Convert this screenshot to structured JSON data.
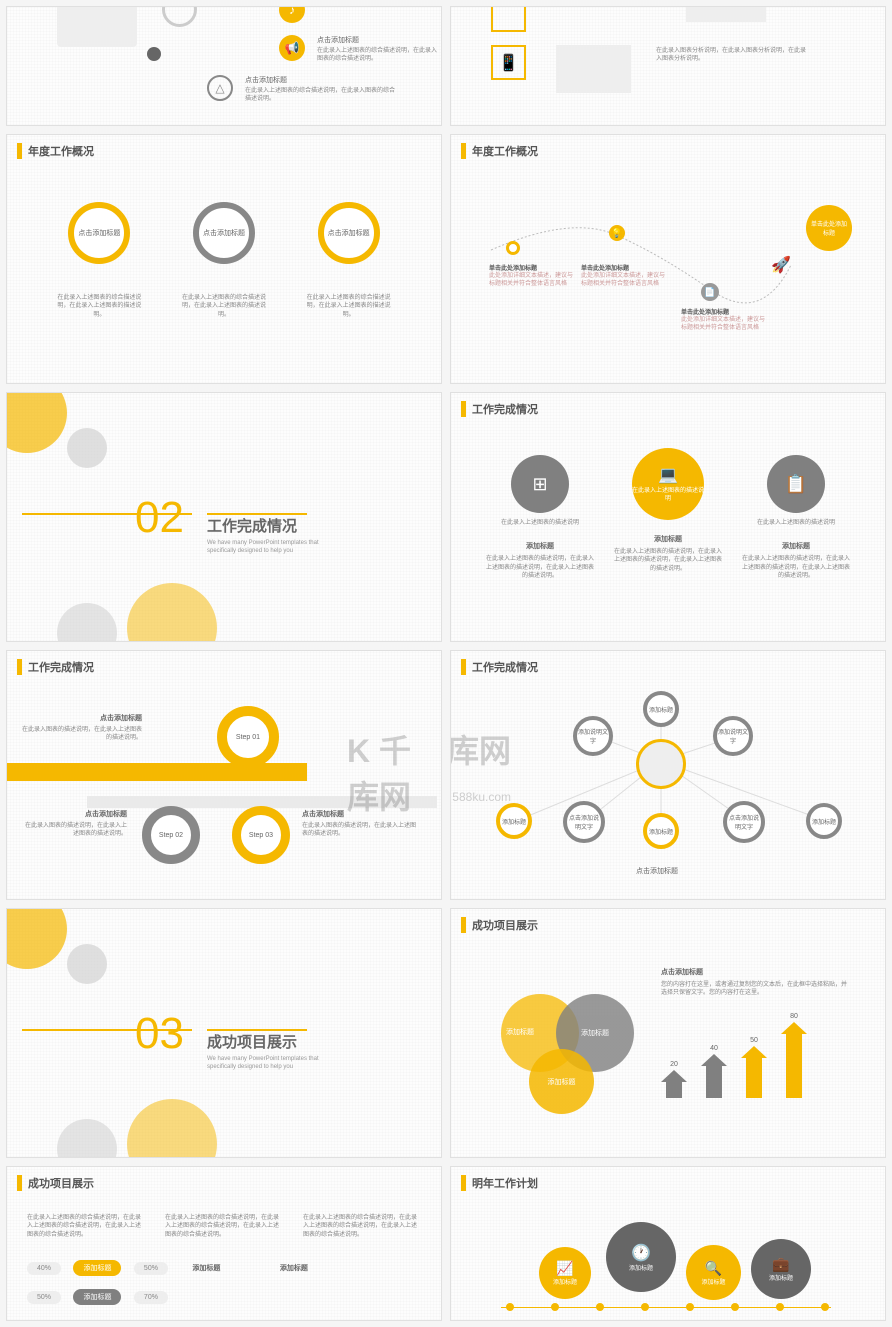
{
  "colors": {
    "accent": "#f5b800",
    "gray": "#808080",
    "darkgray": "#595959",
    "lightgray": "#b3b3b3",
    "bg": "#fdfdfd"
  },
  "watermark": {
    "main": "千库网",
    "sub": "588ku.com"
  },
  "headers": {
    "annual": "年度工作概况",
    "complete": "工作完成情况",
    "success": "成功项目展示",
    "plan": "明年工作计划"
  },
  "placeholder": {
    "click_title": "点击添加标题",
    "add_title": "添加标题",
    "add_text": "添加说明文字",
    "click_here": "单击此处添加标题",
    "click_add": "点击添加说明文字",
    "desc": "在此录入上述图表的综合描述说明，在此录入上述图表的描述说明。",
    "desc2": "在此录入图表的描述说明，在此录入上述图表的描述说明。",
    "desc3": "此处添加详细文本描述，建议与标题相关并符合整体语言风格",
    "sec_sub": "We have many PowerPoint templates that specifically designed to help you"
  },
  "sections": {
    "s02": {
      "num": "02",
      "title": "工作完成情况"
    },
    "s03": {
      "num": "03",
      "title": "成功项目展示"
    }
  },
  "slide_rings": {
    "labels": [
      "点击添加标题",
      "点击添加标题",
      "点击添加标题"
    ]
  },
  "timeline": {
    "items": [
      {
        "title": "单击此处添加标题",
        "d1": "此处添加详细文本描述，建议与",
        "d2": "标题相关并符合整体语言风格"
      },
      {
        "title": "单击此处添加标题",
        "d1": "此处添加详细文本描述，建议与",
        "d2": "标题相关并符合整体语言风格"
      },
      {
        "title": "单击此处添加标题",
        "d1": "此处添加详细文本描述，建议与",
        "d2": "标题相关并符合整体语言风格"
      }
    ],
    "bubble": "单击此处添加标题"
  },
  "three_icons": {
    "items": [
      {
        "title": "添加标题",
        "desc": "在此录入上述图表的描述说明，在此录入上述图表的描述说明，在此录入上述图表的描述说明。"
      },
      {
        "title": "添加标题",
        "desc": "在此录入上述图表的描述说明，在此录入上述图表的描述说明，在此录入上述图表的描述说明。"
      },
      {
        "title": "添加标题",
        "desc": "在此录入上述图表的描述说明，在此录入上述图表的描述说明，在此录入上述图表的描述说明。"
      }
    ],
    "tip": "在此录入上述图表的描述说明"
  },
  "steps": {
    "s1": {
      "label": "Step 01",
      "title": "点击添加标题"
    },
    "s2": {
      "label": "Step 02",
      "title": "点击添加标题"
    },
    "s3": {
      "label": "Step 03",
      "title": "点击添加标题"
    }
  },
  "network": {
    "nodes": [
      "添加标题",
      "添加说明文字",
      "添加说明文字",
      "添加标题",
      "点击添加说明文字",
      "添加标题",
      "点击添加说明文字",
      "添加标题"
    ],
    "caption": "点击添加标题"
  },
  "venn": {
    "labels": [
      "添加标题",
      "添加标题",
      "添加标题"
    ],
    "chart_title": "点击添加标题",
    "chart_desc": "您的内容打在这里，或者通过复制您的文本后，在此框中选择粘贴，并选择只保留文字。您的内容打在这里。",
    "bars": [
      {
        "v": 20,
        "c": "#808080"
      },
      {
        "v": 40,
        "c": "#808080"
      },
      {
        "v": 50,
        "c": "#f5b800"
      },
      {
        "v": 80,
        "c": "#f5b800"
      }
    ]
  },
  "pills": {
    "row": [
      {
        "pct": "40%",
        "label": "添加标题",
        "pct2": "50%"
      },
      {
        "label2": "添加标题",
        "label3": "添加标题"
      },
      {
        "pct": "50%",
        "label": "添加标题",
        "pct2": "70%"
      }
    ],
    "desc": "在此录入上述图表的综合描述说明，在此录入上述图表的综合描述说明，在此录入上述图表的综合描述说明。"
  },
  "plan": {
    "nodes": [
      "添加标题",
      "添加标题",
      "添加标题",
      "添加标题"
    ]
  },
  "top": {
    "t1": "点击添加标题",
    "t2": "点击添加标题",
    "d": "在此录入上述图表的综合描述说明，在此录入图表的综合描述说明。",
    "right_d": "在此录入图表分析说明，在此录入图表分析说明，在此录入图表分析说明。"
  }
}
